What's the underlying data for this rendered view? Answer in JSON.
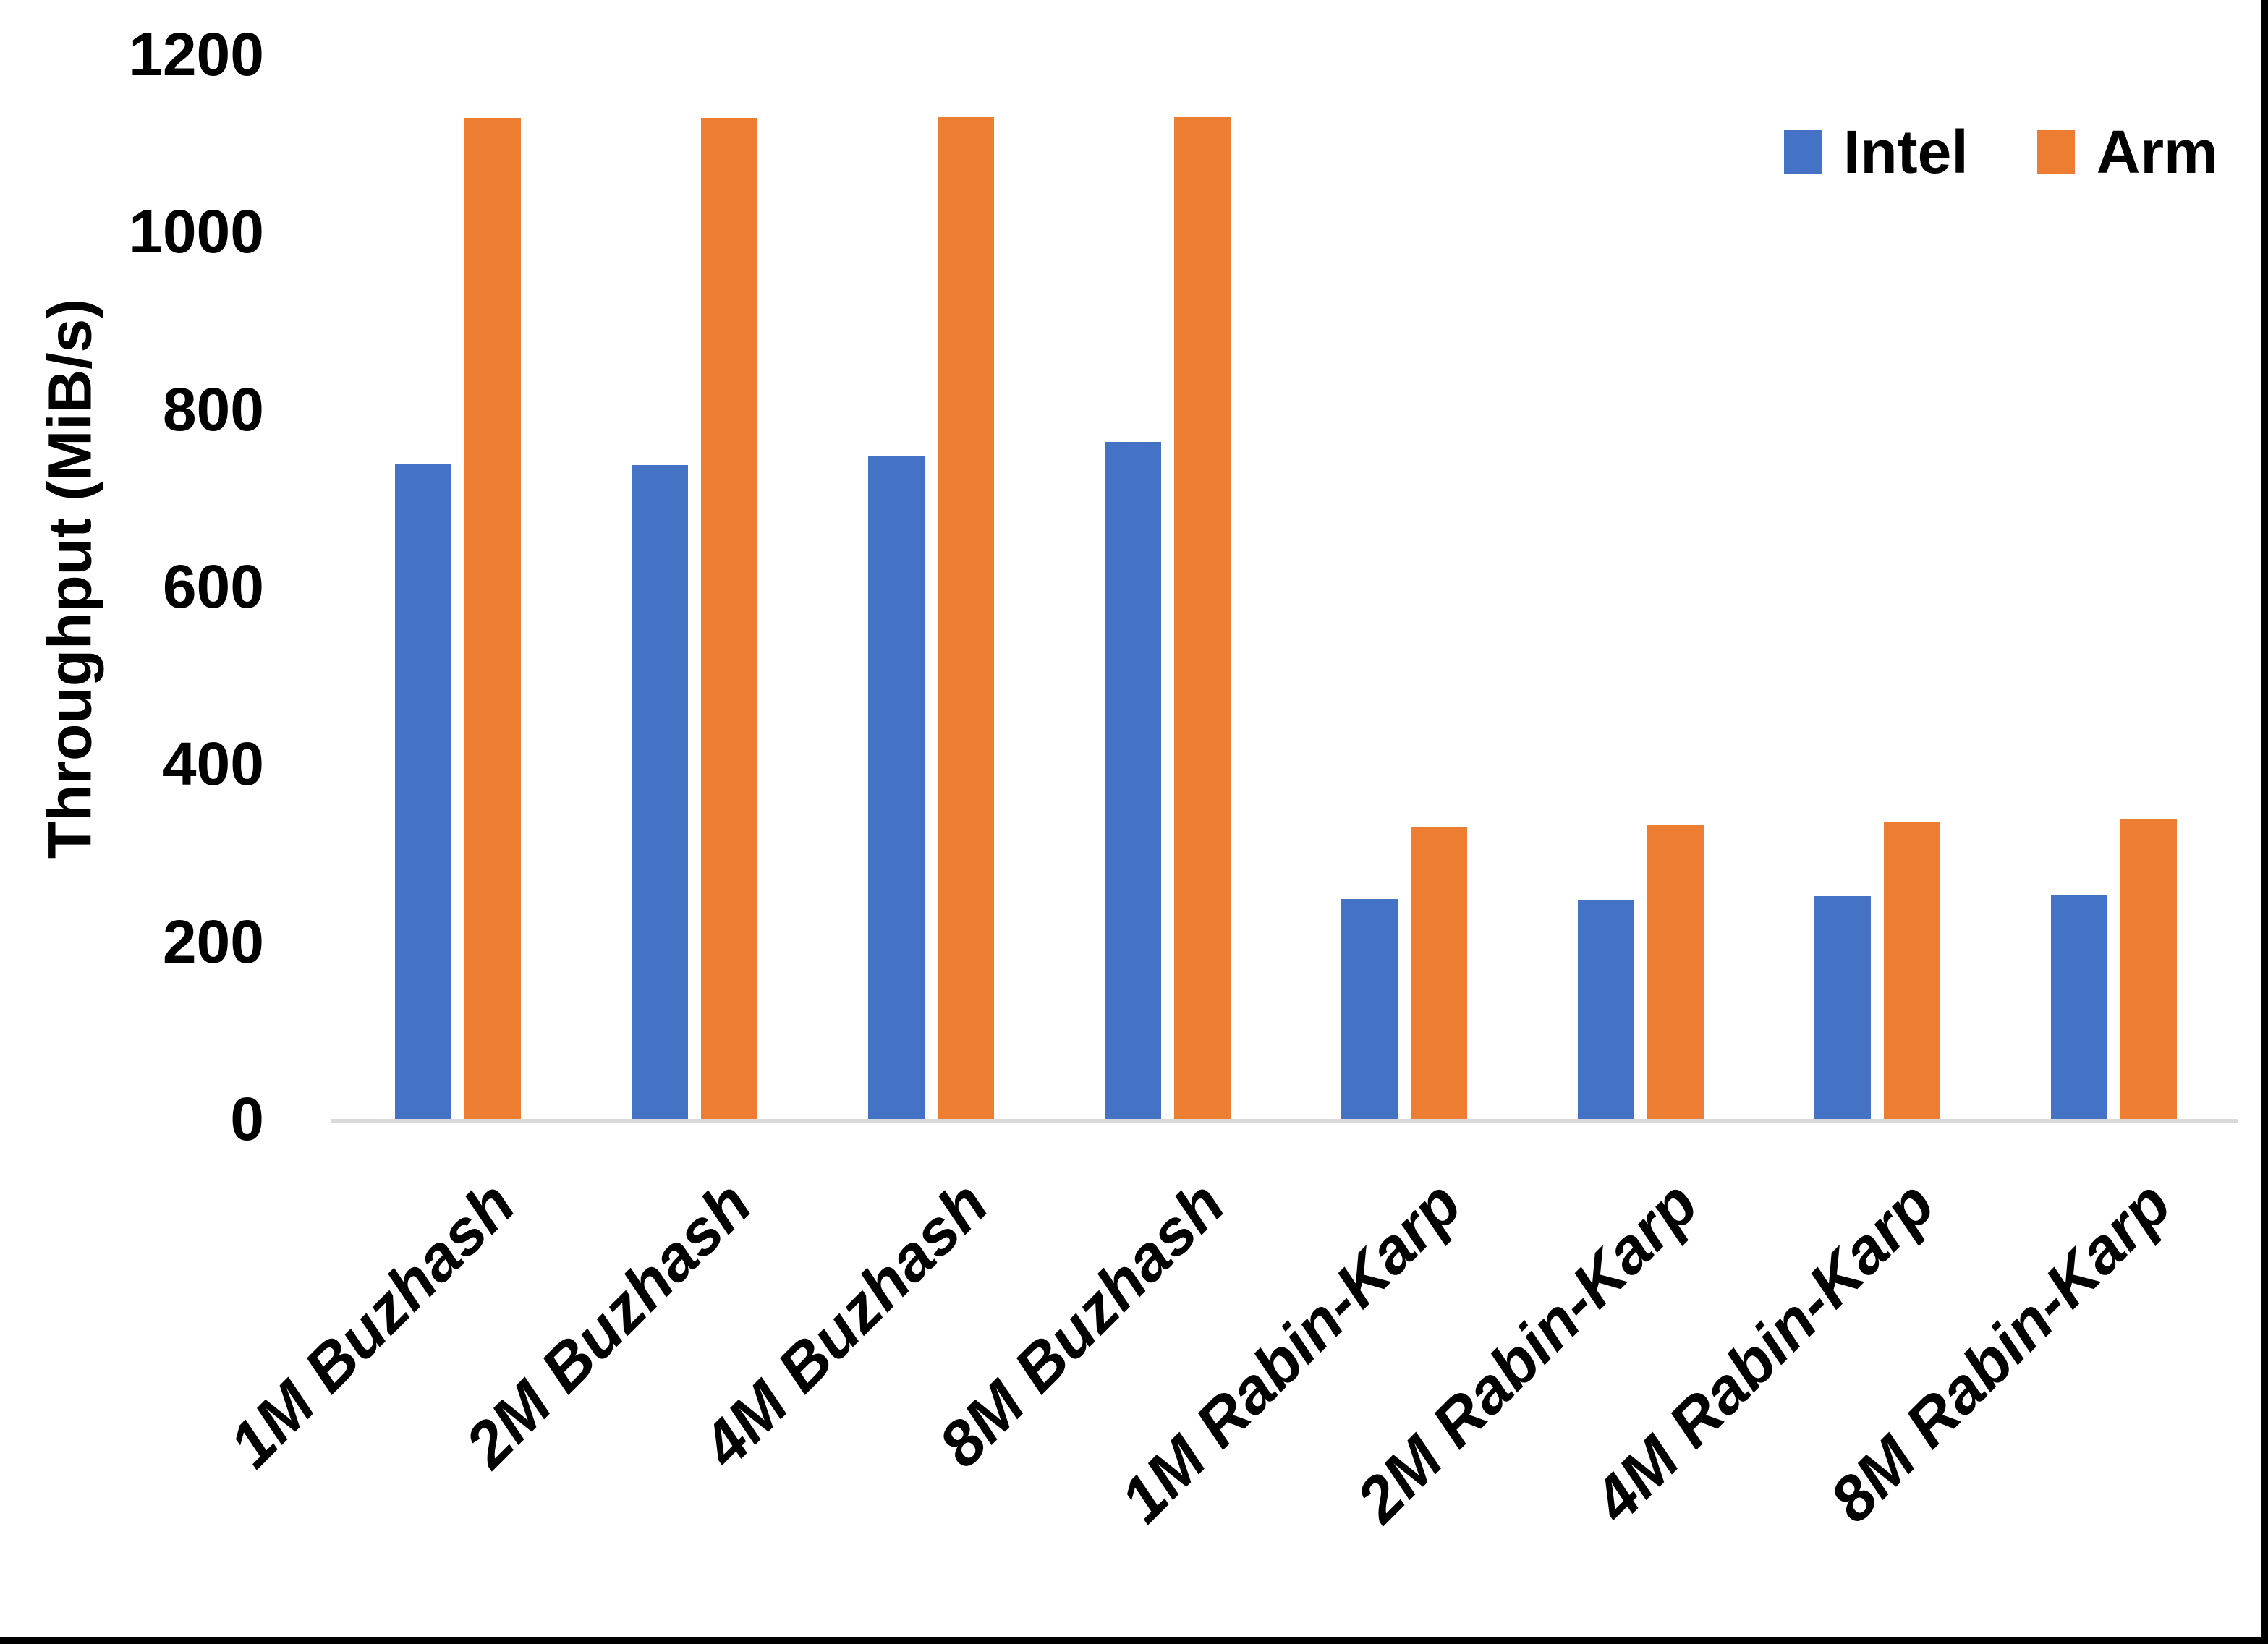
{
  "chart_data": {
    "type": "bar",
    "title": "",
    "xlabel": "",
    "ylabel": "Throughput (MiB/s)",
    "ylim": [
      0,
      1200
    ],
    "yticks": [
      0,
      200,
      400,
      600,
      800,
      1000,
      1200
    ],
    "grid": false,
    "legend_position": "top-right",
    "categories": [
      "1M Buzhash",
      "2M Buzhash",
      "4M Buzhash",
      "8M Buzhash",
      "1M Rabin-Karp",
      "2M Rabin-Karp",
      "4M Rabin-Karp",
      "8M Rabin-Karp"
    ],
    "series": [
      {
        "name": "Intel",
        "color": "#4472C4",
        "values": [
          738,
          737,
          747,
          763,
          248,
          246,
          251,
          252
        ]
      },
      {
        "name": "Arm",
        "color": "#ED7D31",
        "values": [
          1128,
          1128,
          1129,
          1129,
          329,
          331,
          334,
          338
        ]
      }
    ]
  },
  "colors": {
    "background": "#FFFFFF",
    "axis_line": "#D9D9D9",
    "text": "#000000",
    "frame_edge": "#000000"
  }
}
